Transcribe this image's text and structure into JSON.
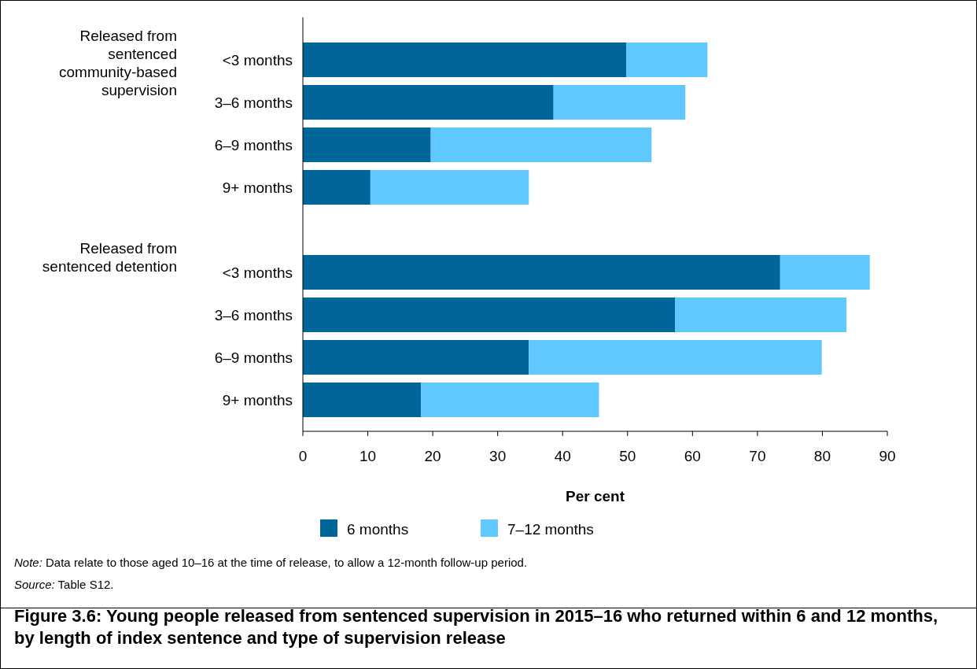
{
  "chart_data": {
    "type": "bar",
    "orientation": "horizontal",
    "stacked": true,
    "title": "Figure 3.6: Young people released from sentenced supervision in 2015–16 who returned within 6 and 12 months, by length of index sentence and type of supervision release",
    "xlabel": "Per cent",
    "categories": [
      "<3 months",
      "3–6 months",
      "6–9 months",
      "9+ months",
      null,
      "<3 months",
      "3–6 months",
      "6–9 months",
      "9+ months"
    ],
    "series": [
      {
        "name": "6 months",
        "color": "#006699",
        "values": [
          49.8,
          38.6,
          19.7,
          10.4,
          null,
          73.5,
          57.3,
          34.8,
          18.2
        ]
      },
      {
        "name": "7–12 months",
        "color": "#5fc9ff",
        "values": [
          12.5,
          20.3,
          34.0,
          24.4,
          null,
          13.8,
          26.4,
          45.1,
          27.4
        ]
      }
    ],
    "xlim": [
      0,
      90
    ],
    "xticks": [
      0,
      10,
      20,
      30,
      40,
      50,
      60,
      70,
      80,
      90
    ],
    "legend": "bottom",
    "annotations": [
      "Released from sentenced community-based supervision",
      "Released from sentenced detention",
      "Note: Data relate to those aged 10–16 at the time of release, to allow a 12-month follow-up period.",
      "Source: Table S12."
    ]
  }
}
